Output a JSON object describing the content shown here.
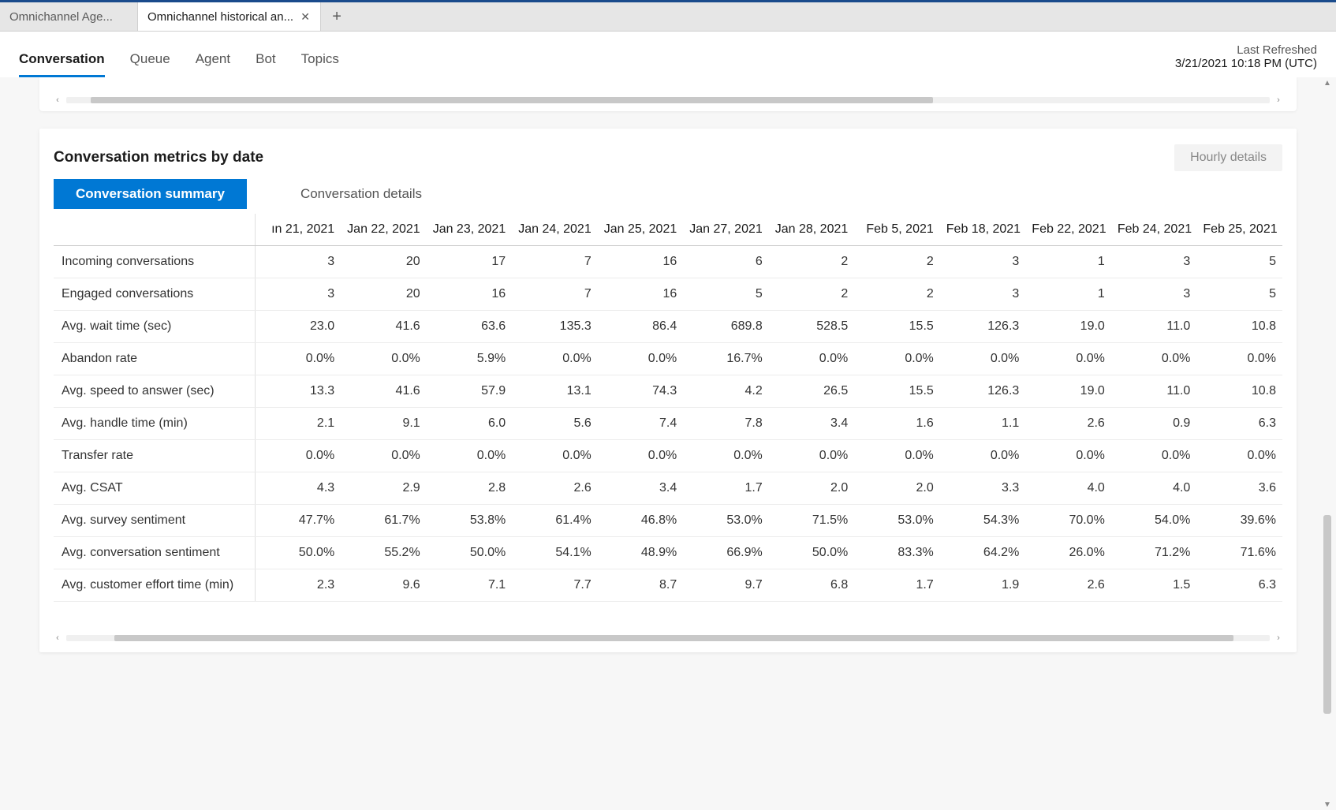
{
  "tabs": {
    "inactive": "Omnichannel Age...",
    "active": "Omnichannel historical an...",
    "close_glyph": "✕",
    "plus_glyph": "+"
  },
  "nav": {
    "items": [
      "Conversation",
      "Queue",
      "Agent",
      "Bot",
      "Topics"
    ],
    "selected_index": 0
  },
  "refresh": {
    "label": "Last Refreshed",
    "timestamp": "3/21/2021 10:18 PM (UTC)"
  },
  "card": {
    "title": "Conversation metrics by date",
    "hourly_button": "Hourly details",
    "sub_tabs": [
      "Conversation summary",
      "Conversation details"
    ],
    "active_sub_tab": 0
  },
  "table": {
    "date_headers": [
      "ın 21, 2021",
      "Jan 22, 2021",
      "Jan 23, 2021",
      "Jan 24, 2021",
      "Jan 25, 2021",
      "Jan 27, 2021",
      "Jan 28, 2021",
      "Feb 5, 2021",
      "Feb 18, 2021",
      "Feb 22, 2021",
      "Feb 24, 2021",
      "Feb 25, 2021"
    ],
    "rows": [
      {
        "label": "Incoming conversations",
        "cells": [
          "3",
          "20",
          "17",
          "7",
          "16",
          "6",
          "2",
          "2",
          "3",
          "1",
          "3",
          "5"
        ]
      },
      {
        "label": "Engaged conversations",
        "cells": [
          "3",
          "20",
          "16",
          "7",
          "16",
          "5",
          "2",
          "2",
          "3",
          "1",
          "3",
          "5"
        ]
      },
      {
        "label": "Avg. wait time (sec)",
        "cells": [
          "23.0",
          "41.6",
          "63.6",
          "135.3",
          "86.4",
          "689.8",
          "528.5",
          "15.5",
          "126.3",
          "19.0",
          "11.0",
          "10.8"
        ]
      },
      {
        "label": "Abandon rate",
        "cells": [
          "0.0%",
          "0.0%",
          "5.9%",
          "0.0%",
          "0.0%",
          "16.7%",
          "0.0%",
          "0.0%",
          "0.0%",
          "0.0%",
          "0.0%",
          "0.0%"
        ]
      },
      {
        "label": "Avg. speed to answer (sec)",
        "cells": [
          "13.3",
          "41.6",
          "57.9",
          "13.1",
          "74.3",
          "4.2",
          "26.5",
          "15.5",
          "126.3",
          "19.0",
          "11.0",
          "10.8"
        ]
      },
      {
        "label": "Avg. handle time (min)",
        "cells": [
          "2.1",
          "9.1",
          "6.0",
          "5.6",
          "7.4",
          "7.8",
          "3.4",
          "1.6",
          "1.1",
          "2.6",
          "0.9",
          "6.3"
        ]
      },
      {
        "label": "Transfer rate",
        "cells": [
          "0.0%",
          "0.0%",
          "0.0%",
          "0.0%",
          "0.0%",
          "0.0%",
          "0.0%",
          "0.0%",
          "0.0%",
          "0.0%",
          "0.0%",
          "0.0%"
        ]
      },
      {
        "label": "Avg. CSAT",
        "cells": [
          "4.3",
          "2.9",
          "2.8",
          "2.6",
          "3.4",
          "1.7",
          "2.0",
          "2.0",
          "3.3",
          "4.0",
          "4.0",
          "3.6"
        ]
      },
      {
        "label": "Avg. survey sentiment",
        "cells": [
          "47.7%",
          "61.7%",
          "53.8%",
          "61.4%",
          "46.8%",
          "53.0%",
          "71.5%",
          "53.0%",
          "54.3%",
          "70.0%",
          "54.0%",
          "39.6%"
        ]
      },
      {
        "label": "Avg. conversation sentiment",
        "cells": [
          "50.0%",
          "55.2%",
          "50.0%",
          "54.1%",
          "48.9%",
          "66.9%",
          "50.0%",
          "83.3%",
          "64.2%",
          "26.0%",
          "71.2%",
          "71.6%"
        ]
      },
      {
        "label": "Avg. customer effort time (min)",
        "cells": [
          "2.3",
          "9.6",
          "7.1",
          "7.7",
          "8.7",
          "9.7",
          "6.8",
          "1.7",
          "1.9",
          "2.6",
          "1.5",
          "6.3"
        ]
      }
    ]
  },
  "scroll": {
    "top_thumb_left_pct": 2,
    "top_thumb_width_pct": 70,
    "bottom_thumb_left_pct": 4,
    "bottom_thumb_width_pct": 93,
    "v_thumb_top_pct": 60,
    "v_thumb_height_pct": 28,
    "left_arrow": "‹",
    "right_arrow": "›",
    "up_arrow": "▲",
    "down_arrow": "▼"
  },
  "colors": {
    "accent": "#0078d4",
    "tab_strip_bg": "#e6e6e6",
    "content_bg": "#f7f7f7",
    "border": "#d0d0d0",
    "scroll_thumb": "#c8c8c8"
  }
}
